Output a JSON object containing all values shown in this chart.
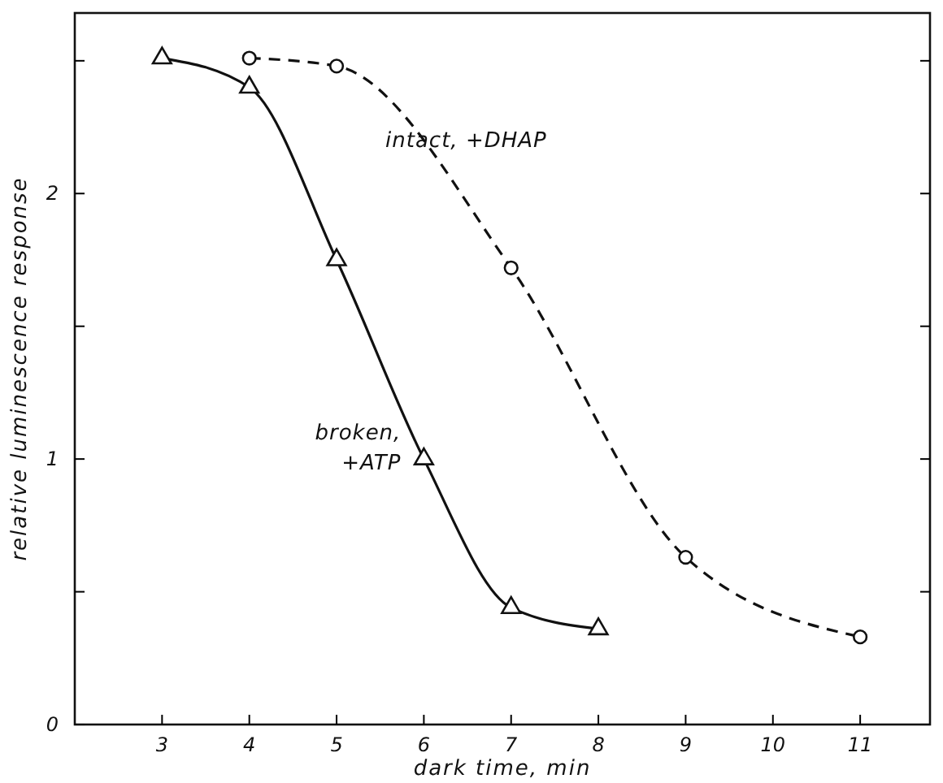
{
  "chart_data": {
    "type": "line",
    "xlabel": "dark time, min",
    "ylabel": "relative luminescence response",
    "xlim": [
      2,
      11.8
    ],
    "ylim": [
      0,
      2.68
    ],
    "xticks": [
      3,
      4,
      5,
      6,
      7,
      8,
      9,
      10,
      11
    ],
    "yticks": [
      0,
      {
        "value": 0.5,
        "label": null
      },
      1,
      {
        "value": 1.5,
        "label": null
      },
      2,
      {
        "value": 2.5,
        "label": null
      }
    ],
    "grid": false,
    "series": [
      {
        "name": "broken, +ATP",
        "color": "#111111",
        "marker": "triangle",
        "line_style": "solid",
        "x": [
          3,
          4,
          5,
          6,
          7,
          8
        ],
        "values": [
          2.51,
          2.4,
          1.75,
          1.0,
          0.44,
          0.36
        ]
      },
      {
        "name": "intact, +DHAP",
        "color": "#111111",
        "marker": "circle",
        "line_style": "dashed",
        "x": [
          4,
          5,
          7,
          9,
          11
        ],
        "values": [
          2.51,
          2.48,
          1.72,
          0.63,
          0.33
        ]
      }
    ]
  }
}
